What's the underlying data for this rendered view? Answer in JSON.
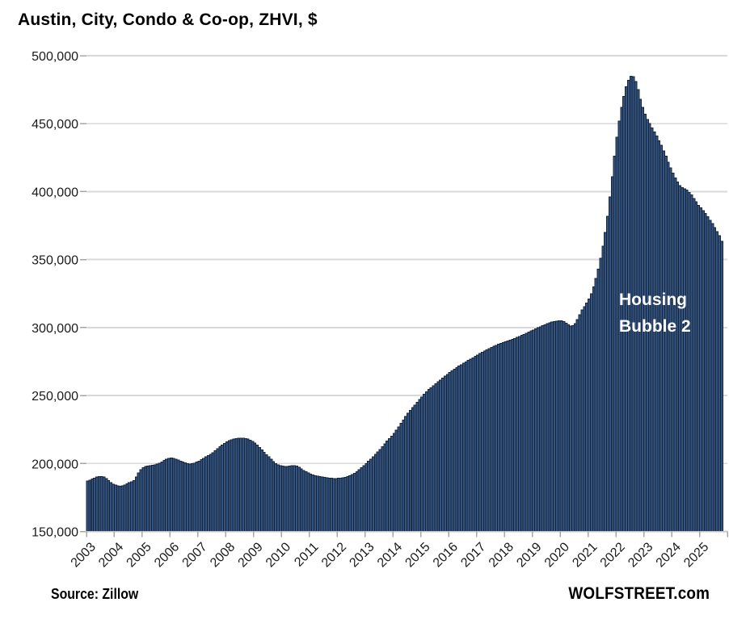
{
  "title": "Austin, City, Condo & Co-op, ZHVI, $",
  "annotation": {
    "line1": "Housing",
    "line2": "Bubble 2"
  },
  "footer": {
    "source": "Source: Zillow",
    "site": "WOLFSTREET.com"
  },
  "colors": {
    "bar_fill": "#335381",
    "bar_border": "#172438",
    "gridline": "#d9d9d9",
    "axis_line": "#c6c6c6",
    "tick": "#a6a6a6",
    "annotation_text": "#ffffff",
    "text": "#1a1a1a"
  },
  "chart_data": {
    "type": "bar",
    "title": "Austin, City, Condo & Co-op, ZHVI, $",
    "x_start": "2003-01",
    "x_end": "2025-10",
    "x_slots": 276,
    "x_tick_labels": [
      "2003",
      "2004",
      "2005",
      "2006",
      "2007",
      "2008",
      "2009",
      "2010",
      "2011",
      "2012",
      "2013",
      "2014",
      "2015",
      "2016",
      "2017",
      "2018",
      "2019",
      "2020",
      "2021",
      "2022",
      "2023",
      "2024",
      "2025"
    ],
    "ylim": [
      150000,
      500000
    ],
    "y_ticks": [
      150000,
      200000,
      250000,
      300000,
      350000,
      400000,
      450000,
      500000
    ],
    "y_tick_labels": [
      "150,000",
      "200,000",
      "250,000",
      "300,000",
      "350,000",
      "400,000",
      "450,000",
      "500,000"
    ],
    "grid": "horizontal",
    "legend": "none",
    "series": [
      {
        "name": "ZHVI",
        "values": [
          187000,
          187800,
          188500,
          189300,
          190000,
          190500,
          190500,
          190000,
          189000,
          187500,
          186000,
          184800,
          184000,
          183400,
          183200,
          183500,
          184200,
          185000,
          185800,
          186500,
          187500,
          190000,
          193000,
          195500,
          197000,
          197800,
          198200,
          198500,
          198800,
          199000,
          199500,
          200200,
          201200,
          202300,
          203200,
          203800,
          204000,
          203800,
          203200,
          202500,
          201800,
          201200,
          200500,
          200000,
          199600,
          199800,
          200300,
          201000,
          201800,
          202800,
          203800,
          204800,
          205800,
          206800,
          208000,
          209300,
          210800,
          212200,
          213500,
          214800,
          215800,
          216700,
          217400,
          217900,
          218300,
          218600,
          218700,
          218600,
          218400,
          218000,
          217200,
          216200,
          215000,
          213500,
          211800,
          210000,
          208300,
          206500,
          204800,
          203200,
          201500,
          200000,
          199000,
          198400,
          198000,
          197800,
          197800,
          198000,
          198300,
          198500,
          198200,
          197300,
          196000,
          194800,
          193800,
          193000,
          192200,
          191500,
          191000,
          190600,
          190300,
          190000,
          189700,
          189400,
          189200,
          189100,
          189000,
          189000,
          189100,
          189300,
          189500,
          189800,
          190300,
          191000,
          191800,
          192800,
          194000,
          195400,
          196900,
          198400,
          200000,
          201600,
          203200,
          204900,
          206600,
          208400,
          210300,
          212300,
          214400,
          216400,
          218300,
          220100,
          222000,
          224500,
          227000,
          229500,
          232000,
          234500,
          237000,
          239000,
          241000,
          243000,
          245000,
          247000,
          249000,
          251000,
          252800,
          254400,
          255800,
          257200,
          258600,
          260000,
          261400,
          262800,
          264200,
          265600,
          267000,
          268200,
          269400,
          270500,
          271600,
          272700,
          273800,
          274800,
          275800,
          276800,
          277800,
          278800,
          279800,
          280800,
          281800,
          282800,
          283700,
          284600,
          285400,
          286200,
          287000,
          287700,
          288400,
          289000,
          289600,
          290200,
          290800,
          291400,
          292000,
          292700,
          293400,
          294200,
          295000,
          295800,
          296600,
          297400,
          298200,
          299000,
          299800,
          300600,
          301400,
          302100,
          302800,
          303400,
          304000,
          304400,
          304700,
          304900,
          305000,
          304400,
          303200,
          302000,
          301200,
          301500,
          303000,
          306000,
          309500,
          313000,
          315500,
          318000,
          321000,
          325000,
          330000,
          336000,
          343000,
          351000,
          360000,
          370000,
          382000,
          396000,
          411000,
          426000,
          440000,
          452000,
          462000,
          470000,
          477000,
          482000,
          485000,
          484500,
          481000,
          475000,
          468000,
          462000,
          457000,
          453000,
          450000,
          447000,
          444000,
          441000,
          437500,
          434000,
          430000,
          426000,
          421500,
          417500,
          413500,
          410000,
          407000,
          404500,
          403000,
          402000,
          401000,
          399500,
          397500,
          395000,
          392500,
          390000,
          388000,
          386000,
          384000,
          381500,
          379000,
          376500,
          373500,
          370500,
          367500,
          363500
        ]
      }
    ]
  }
}
